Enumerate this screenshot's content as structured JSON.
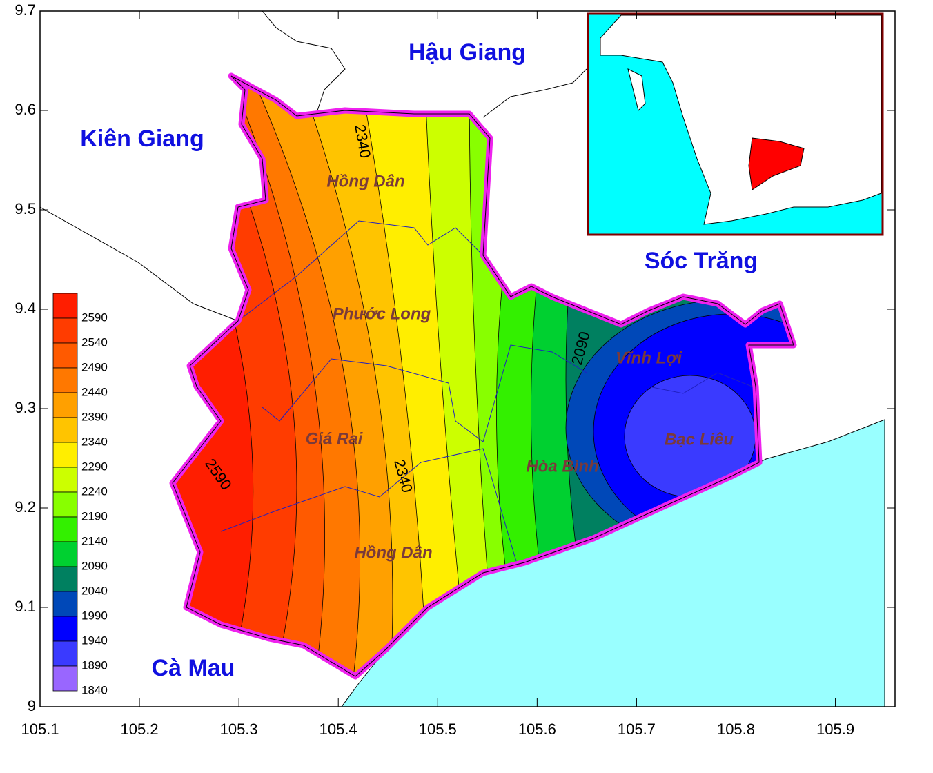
{
  "map": {
    "xlim": [
      105.1,
      105.96
    ],
    "ylim": [
      9,
      9.7
    ],
    "xticks": [
      105.1,
      105.2,
      105.3,
      105.4,
      105.5,
      105.6,
      105.7,
      105.8,
      105.9
    ],
    "yticks": [
      9,
      9.1,
      9.2,
      9.3,
      9.4,
      9.5,
      9.6,
      9.7
    ],
    "provinces": [
      "Hậu Giang",
      "Kiên Giang",
      "Sóc Trăng",
      "Cà Mau"
    ],
    "districts": [
      "Hồng Dân",
      "Phước Long",
      "Giá Rai",
      "Hồng Dân",
      "Hòa Bình",
      "Vĩnh Lợi",
      "Bạc Liêu"
    ],
    "contour_labels": [
      2340,
      2090,
      2590,
      2340
    ],
    "legend": {
      "levels": [
        2590,
        2540,
        2490,
        2440,
        2390,
        2340,
        2290,
        2240,
        2190,
        2140,
        2090,
        2040,
        1990,
        1940,
        1890,
        1840
      ],
      "colors": [
        "#ff1e00",
        "#ff3c00",
        "#ff5a00",
        "#ff7800",
        "#ffa000",
        "#ffc400",
        "#ffee00",
        "#ccff00",
        "#88ff00",
        "#33f000",
        "#00d030",
        "#008060",
        "#0048b8",
        "#0000ff",
        "#3a3aff",
        "#9966ff"
      ]
    }
  }
}
